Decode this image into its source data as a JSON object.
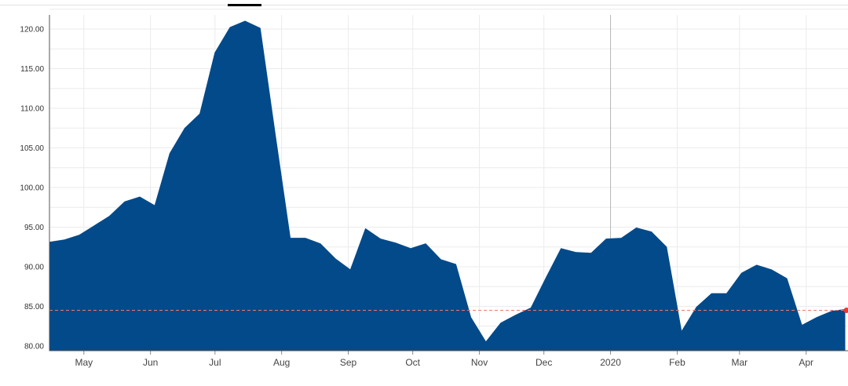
{
  "chart_data": {
    "type": "area",
    "title": "",
    "xlabel": "",
    "ylabel": "",
    "ylim": [
      80,
      122.5
    ],
    "y_ticks": [
      "120.00",
      "115.00",
      "110.00",
      "105.00",
      "100.00",
      "95.00",
      "90.00",
      "85.00",
      "80.00"
    ],
    "x_ticks": [
      {
        "label": "May",
        "date": "2019-05-01"
      },
      {
        "label": "Jun",
        "date": "2019-06-01"
      },
      {
        "label": "Jul",
        "date": "2019-07-01"
      },
      {
        "label": "Aug",
        "date": "2019-08-01"
      },
      {
        "label": "Sep",
        "date": "2019-09-01"
      },
      {
        "label": "Oct",
        "date": "2019-10-01"
      },
      {
        "label": "Nov",
        "date": "2019-11-01"
      },
      {
        "label": "Dec",
        "date": "2019-12-01"
      },
      {
        "label": "2020",
        "date": "2020-01-01"
      },
      {
        "label": "Feb",
        "date": "2020-02-01"
      },
      {
        "label": "Mar",
        "date": "2020-03-01"
      },
      {
        "label": "Apr",
        "date": "2020-04-01"
      }
    ],
    "x_range": [
      "2019-04-15",
      "2020-04-19"
    ],
    "grid": true,
    "series": [
      {
        "color": "#034a8a",
        "x": [
          "2019-04-15",
          "2019-04-22",
          "2019-04-29",
          "2019-05-06",
          "2019-05-13",
          "2019-05-20",
          "2019-05-27",
          "2019-06-03",
          "2019-06-10",
          "2019-06-17",
          "2019-06-24",
          "2019-07-01",
          "2019-07-08",
          "2019-07-15",
          "2019-07-22",
          "2019-07-29",
          "2019-08-05",
          "2019-08-12",
          "2019-08-19",
          "2019-08-26",
          "2019-09-02",
          "2019-09-09",
          "2019-09-16",
          "2019-09-23",
          "2019-09-30",
          "2019-10-07",
          "2019-10-14",
          "2019-10-21",
          "2019-10-28",
          "2019-11-04",
          "2019-11-11",
          "2019-11-18",
          "2019-11-25",
          "2019-12-02",
          "2019-12-09",
          "2019-12-16",
          "2019-12-23",
          "2019-12-30",
          "2020-01-06",
          "2020-01-13",
          "2020-01-20",
          "2020-01-27",
          "2020-02-03",
          "2020-02-10",
          "2020-02-17",
          "2020-02-24",
          "2020-03-02",
          "2020-03-09",
          "2020-03-16",
          "2020-03-23",
          "2020-03-30",
          "2020-04-06",
          "2020-04-13",
          "2020-04-19"
        ],
        "values": [
          93.1,
          93.4,
          94.0,
          95.2,
          96.4,
          98.2,
          98.8,
          97.7,
          104.3,
          107.5,
          109.3,
          117.0,
          120.2,
          121.0,
          120.1,
          106.7,
          93.6,
          93.6,
          92.9,
          91.0,
          89.6,
          94.8,
          93.5,
          93.0,
          92.3,
          92.9,
          90.9,
          90.3,
          83.6,
          80.5,
          82.9,
          83.9,
          84.8,
          88.6,
          92.3,
          91.8,
          91.7,
          93.5,
          93.6,
          94.9,
          94.4,
          92.5,
          81.8,
          84.9,
          86.6,
          86.6,
          89.2,
          90.2,
          89.6,
          88.5,
          82.6,
          83.6,
          84.4,
          84.6
        ]
      }
    ],
    "current_value": 84.5,
    "reference_line_color": "#f0786e",
    "marker_color": "#e83a2e"
  }
}
